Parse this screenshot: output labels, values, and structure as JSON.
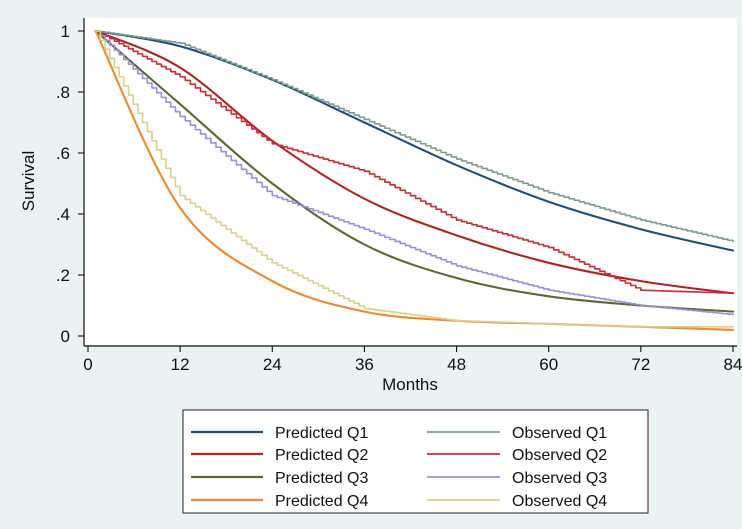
{
  "chart_data": {
    "type": "line",
    "title": "",
    "xlabel": "Months",
    "ylabel": "Survival",
    "xlim": [
      0,
      84
    ],
    "ylim": [
      0,
      1
    ],
    "x_ticks": [
      0,
      12,
      24,
      36,
      48,
      60,
      72,
      84
    ],
    "y_ticks": [
      0,
      0.2,
      0.4,
      0.6,
      0.8,
      1
    ],
    "y_tick_labels": [
      "0",
      ".2",
      ".4",
      ".6",
      ".8",
      "1"
    ],
    "grid": false,
    "legend_position": "bottom",
    "series": [
      {
        "name": "Predicted Q1",
        "kind": "predicted",
        "color": "#1f4e79",
        "x": [
          1,
          12,
          24,
          36,
          48,
          60,
          72,
          84
        ],
        "y": [
          1.0,
          0.95,
          0.84,
          0.7,
          0.56,
          0.44,
          0.35,
          0.28
        ]
      },
      {
        "name": "Observed Q1",
        "kind": "observed",
        "color": "#7d9c8f",
        "x": [
          1,
          12,
          24,
          36,
          48,
          60,
          72,
          84
        ],
        "y": [
          1.0,
          0.96,
          0.84,
          0.71,
          0.58,
          0.47,
          0.38,
          0.31
        ]
      },
      {
        "name": "Predicted Q2",
        "kind": "predicted",
        "color": "#b22222",
        "x": [
          1,
          12,
          24,
          36,
          48,
          60,
          72,
          84
        ],
        "y": [
          1.0,
          0.88,
          0.64,
          0.45,
          0.33,
          0.24,
          0.18,
          0.14
        ]
      },
      {
        "name": "Observed Q2",
        "kind": "observed",
        "color": "#cc2a36",
        "x": [
          1,
          12,
          24,
          36,
          48,
          60,
          72,
          84
        ],
        "y": [
          1.0,
          0.85,
          0.63,
          0.54,
          0.38,
          0.29,
          0.15,
          0.14
        ]
      },
      {
        "name": "Predicted Q3",
        "kind": "predicted",
        "color": "#556b2f",
        "x": [
          1,
          12,
          24,
          36,
          48,
          60,
          72,
          84
        ],
        "y": [
          1.0,
          0.76,
          0.5,
          0.3,
          0.19,
          0.13,
          0.1,
          0.08
        ]
      },
      {
        "name": "Observed Q3",
        "kind": "observed",
        "color": "#9b8fdc",
        "x": [
          1,
          12,
          24,
          36,
          48,
          60,
          72,
          84
        ],
        "y": [
          1.0,
          0.72,
          0.46,
          0.35,
          0.23,
          0.15,
          0.1,
          0.07
        ]
      },
      {
        "name": "Predicted Q4",
        "kind": "predicted",
        "color": "#f0892d",
        "x": [
          1,
          12,
          24,
          36,
          48,
          60,
          72,
          84
        ],
        "y": [
          1.0,
          0.42,
          0.18,
          0.08,
          0.05,
          0.04,
          0.03,
          0.02
        ]
      },
      {
        "name": "Observed Q4",
        "kind": "observed",
        "color": "#d9cf8f",
        "x": [
          1,
          12,
          24,
          36,
          48,
          60,
          72,
          84
        ],
        "y": [
          1.0,
          0.46,
          0.24,
          0.09,
          0.05,
          0.04,
          0.03,
          0.03
        ]
      }
    ]
  }
}
